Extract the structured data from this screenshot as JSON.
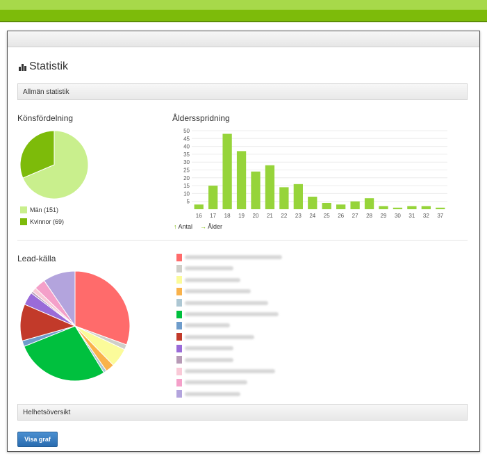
{
  "page": {
    "title": "Statistik",
    "section_general": "Allmän statistik",
    "section_overview": "Helhetsöversikt",
    "show_graph_button": "Visa graf"
  },
  "gender": {
    "heading": "Könsfördelning",
    "legend": [
      {
        "label": "Män (151)",
        "color": "#c9ef8d"
      },
      {
        "label": "Kvinnor (69)",
        "color": "#7dbb0a"
      }
    ]
  },
  "age": {
    "heading": "Åldersspridning",
    "legend_count": "Antal",
    "legend_age": "Ålder"
  },
  "lead": {
    "heading": "Lead-källa",
    "items": [
      {
        "color": "#ff6b6b"
      },
      {
        "color": "#cfcfc9"
      },
      {
        "color": "#fbfb9a"
      },
      {
        "color": "#f9b24b"
      },
      {
        "color": "#adc7d3"
      },
      {
        "color": "#00c03e"
      },
      {
        "color": "#6e9ccb"
      },
      {
        "color": "#c23a2a"
      },
      {
        "color": "#9a6bd8"
      },
      {
        "color": "#b79ab6"
      },
      {
        "color": "#f9c9d7"
      },
      {
        "color": "#f4a0c9"
      },
      {
        "color": "#b3a4dd"
      }
    ]
  },
  "chart_data": [
    {
      "type": "pie",
      "title": "Könsfördelning",
      "categories": [
        "Män",
        "Kvinnor"
      ],
      "values": [
        151,
        69
      ],
      "colors": [
        "#c9ef8d",
        "#7dbb0a"
      ]
    },
    {
      "type": "bar",
      "title": "Åldersspridning",
      "categories": [
        "16",
        "17",
        "18",
        "19",
        "20",
        "21",
        "22",
        "23",
        "24",
        "25",
        "26",
        "27",
        "28",
        "29",
        "30",
        "31",
        "32",
        "37"
      ],
      "values": [
        3,
        15,
        48,
        37,
        24,
        28,
        14,
        16,
        8,
        4,
        3,
        5,
        7,
        2,
        1,
        2,
        2,
        1
      ],
      "yticks": [
        5,
        10,
        15,
        20,
        25,
        30,
        35,
        40,
        45,
        50
      ],
      "ylim": [
        0,
        50
      ],
      "grid": true,
      "color": "#96d43a",
      "legend": [
        "Antal",
        "Ålder"
      ]
    },
    {
      "type": "pie",
      "title": "Lead-källa",
      "values": [
        30.5,
        1.5,
        5.6,
        2.6,
        0.9,
        27.7,
        1.7,
        10.8,
        3.8,
        0.6,
        1.3,
        3.3,
        9.5
      ],
      "colors": [
        "#ff6b6b",
        "#cfcfc9",
        "#fbfb9a",
        "#f9b24b",
        "#adc7d3",
        "#00c03e",
        "#6e9ccb",
        "#c23a2a",
        "#9a6bd8",
        "#b79ab6",
        "#f9c9d7",
        "#f4a0c9",
        "#b3a4dd"
      ]
    }
  ]
}
